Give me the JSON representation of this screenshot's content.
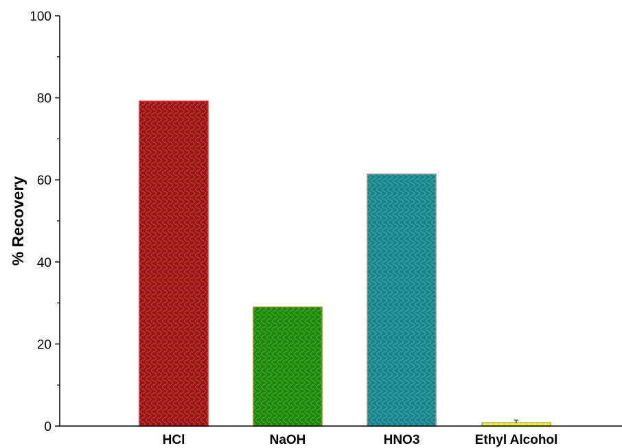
{
  "chart_data": {
    "type": "bar",
    "title": "",
    "xlabel": "",
    "ylabel": "% Recovery",
    "ylim": [
      0,
      100
    ],
    "yticks": [
      0,
      20,
      40,
      60,
      80,
      100
    ],
    "y_minor_ticks": [
      10,
      30,
      50,
      70,
      90
    ],
    "grid": false,
    "categories": [
      "HCl",
      "NaOH",
      "HNO3",
      "Ethyl Alcohol"
    ],
    "values": [
      79.2,
      29.0,
      61.4,
      0.8
    ],
    "colors": [
      "#9b1010",
      "#1a8a05",
      "#13848a",
      "#f2ec2e"
    ],
    "edge_colors": [
      "#e0242a",
      "#8a8a1e",
      "#8d8d8d",
      "#a8a830"
    ]
  }
}
